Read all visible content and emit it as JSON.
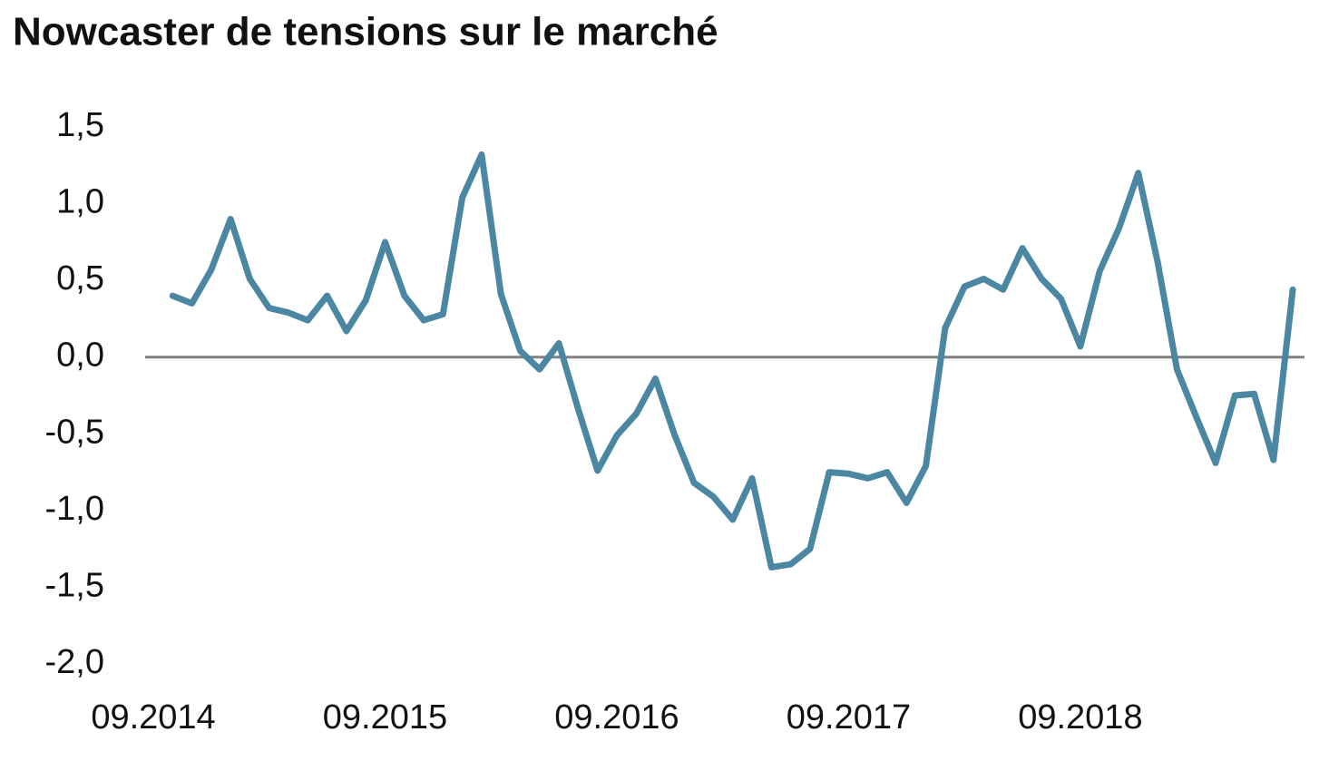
{
  "chart_data": {
    "type": "line",
    "title": "Nowcaster de tensions sur le marché",
    "categories": [
      "09.2014",
      null,
      null,
      null,
      null,
      null,
      null,
      null,
      null,
      null,
      null,
      null,
      "09.2015",
      null,
      null,
      null,
      null,
      null,
      null,
      null,
      null,
      null,
      null,
      null,
      "09.2016",
      null,
      null,
      null,
      null,
      null,
      null,
      null,
      null,
      null,
      null,
      null,
      "09.2017",
      null,
      null,
      null,
      null,
      null,
      null,
      null,
      null,
      null,
      null,
      null,
      "09.2018",
      null,
      null,
      null,
      null,
      null,
      null,
      null,
      null,
      null,
      null,
      null
    ],
    "values": [
      null,
      0.4,
      0.35,
      0.57,
      0.9,
      0.51,
      0.32,
      0.29,
      0.24,
      0.4,
      0.17,
      0.37,
      0.75,
      0.4,
      0.24,
      0.28,
      1.04,
      1.32,
      0.41,
      0.04,
      -0.08,
      0.09,
      -0.34,
      -0.74,
      -0.51,
      -0.37,
      -0.14,
      -0.51,
      -0.82,
      -0.91,
      -1.06,
      -0.79,
      -1.37,
      -1.35,
      -1.25,
      -0.75,
      -0.76,
      -0.79,
      -0.75,
      -0.95,
      -0.71,
      0.19,
      0.46,
      0.51,
      0.44,
      0.71,
      0.51,
      0.38,
      0.07,
      0.56,
      0.84,
      1.2,
      0.62,
      -0.08,
      -0.39,
      -0.69,
      -0.25,
      -0.24,
      -0.67,
      0.44
    ],
    "color": "#4b87a2",
    "ylim": [
      -2,
      1.5
    ],
    "yticks": [
      {
        "value": -2,
        "label": "-2,0"
      },
      {
        "value": -1.5,
        "label": "-1,5"
      },
      {
        "value": -1,
        "label": "-1,0"
      },
      {
        "value": -0.5,
        "label": "-0,5"
      },
      {
        "value": 0,
        "label": "0,0"
      },
      {
        "value": 0.5,
        "label": "0,5"
      },
      {
        "value": 1,
        "label": "1,0"
      },
      {
        "value": 1.5,
        "label": "1,5"
      }
    ],
    "zero_line": true,
    "grid": false
  }
}
